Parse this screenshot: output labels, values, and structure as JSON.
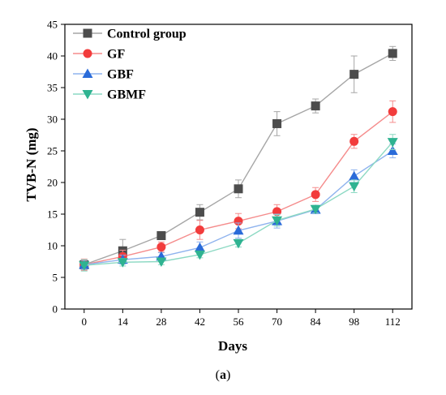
{
  "caption": {
    "open": "(",
    "letter": "a",
    "close": ")"
  },
  "chart_data": {
    "type": "line",
    "xlabel": "Days",
    "ylabel": "TVB-N (mg)",
    "x": [
      0,
      14,
      28,
      42,
      56,
      70,
      84,
      98,
      112
    ],
    "xticks": [
      "0",
      "14",
      "28",
      "42",
      "56",
      "70",
      "84",
      "98",
      "112"
    ],
    "ylim": [
      0,
      45
    ],
    "yticks": [
      "0",
      "5",
      "10",
      "15",
      "20",
      "25",
      "30",
      "35",
      "40",
      "45"
    ],
    "grid": false,
    "legend_position": "top-left",
    "series": [
      {
        "name": "Control group",
        "marker": "square",
        "color": "#4d4d4d",
        "line_color": "#a6a6a6",
        "values": [
          7.0,
          9.2,
          11.6,
          15.3,
          19.0,
          29.3,
          32.1,
          37.1,
          40.4
        ],
        "errors": [
          0.8,
          1.8,
          0.6,
          1.2,
          1.4,
          1.9,
          1.1,
          2.9,
          1.1
        ]
      },
      {
        "name": "GF",
        "marker": "circle",
        "color": "#f23c3c",
        "line_color": "#f58c8c",
        "values": [
          7.0,
          8.3,
          9.8,
          12.5,
          13.9,
          15.4,
          18.1,
          26.5,
          31.2
        ],
        "errors": [
          0.9,
          1.0,
          0.8,
          1.5,
          1.2,
          1.1,
          1.1,
          1.1,
          1.7
        ]
      },
      {
        "name": "GBF",
        "marker": "triangle-up",
        "color": "#2a6bd9",
        "line_color": "#8fb3ee",
        "values": [
          7.0,
          7.8,
          8.3,
          9.7,
          12.4,
          13.9,
          15.7,
          21.0,
          25.0
        ],
        "errors": [
          0.7,
          0.7,
          0.6,
          0.9,
          1.2,
          1.1,
          0.6,
          1.0,
          1.1
        ]
      },
      {
        "name": "GBMF",
        "marker": "triangle-down",
        "color": "#2fb391",
        "line_color": "#8cd9c3",
        "values": [
          6.9,
          7.4,
          7.5,
          8.6,
          10.4,
          14.0,
          15.8,
          19.4,
          26.4
        ],
        "errors": [
          0.9,
          0.6,
          0.5,
          0.5,
          0.6,
          0.9,
          0.6,
          1.0,
          1.2
        ]
      }
    ]
  }
}
